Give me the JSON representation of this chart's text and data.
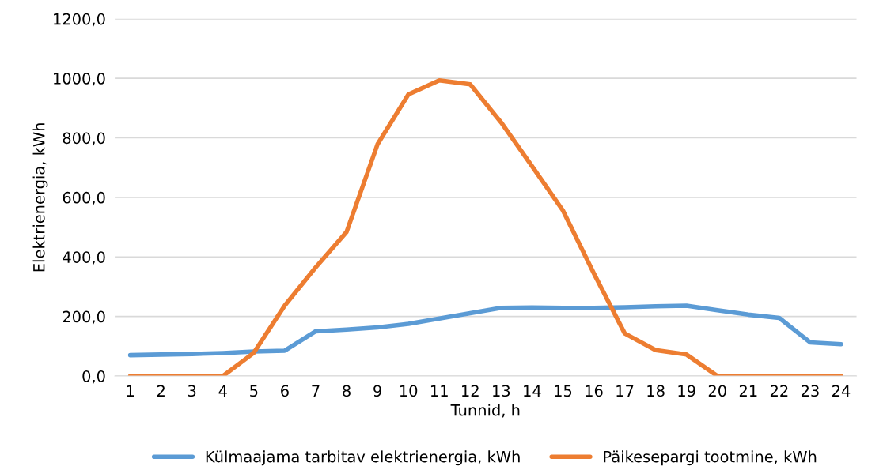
{
  "chart_data": {
    "type": "line",
    "xlabel": "Tunnid, h",
    "ylabel": "Elektrienergia, kWh",
    "categories": [
      "1",
      "2",
      "3",
      "4",
      "5",
      "6",
      "7",
      "8",
      "9",
      "10",
      "11",
      "12",
      "13",
      "14",
      "15",
      "16",
      "17",
      "18",
      "19",
      "20",
      "21",
      "22",
      "23",
      "24"
    ],
    "series": [
      {
        "name": "Külmaajama tarbitav elektrienergia, kWh",
        "color": "#5b9bd5",
        "values": [
          70,
          72,
          74,
          77,
          82,
          85,
          150,
          156,
          163,
          175,
          193,
          211,
          229,
          230,
          229,
          229,
          231,
          234,
          236,
          221,
          206,
          195,
          113,
          107
        ]
      },
      {
        "name": "Päikesepargi tootmine, kWh",
        "color": "#ed7d31",
        "values": [
          0,
          0,
          0,
          0,
          78,
          237,
          365,
          484,
          778,
          946,
          993,
          980,
          852,
          705,
          556,
          345,
          143,
          87,
          72,
          0,
          0,
          0,
          0,
          0
        ]
      }
    ],
    "ylim": [
      0,
      1200
    ],
    "yticks": [
      {
        "value": 0,
        "label": "0,0"
      },
      {
        "value": 200,
        "label": "200,0"
      },
      {
        "value": 400,
        "label": "400,0"
      },
      {
        "value": 600,
        "label": "600,0"
      },
      {
        "value": 800,
        "label": "800,0"
      },
      {
        "value": 1000,
        "label": "1000,0"
      },
      {
        "value": 1200,
        "label": "1200,0"
      }
    ],
    "grid": "y",
    "legend": "bottom",
    "marker": "none",
    "line_style": "solid"
  }
}
